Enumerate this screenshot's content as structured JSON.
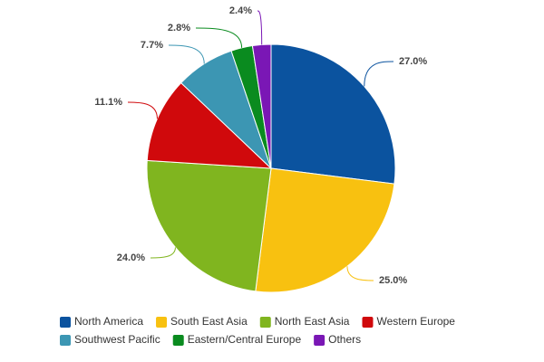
{
  "chart_data": {
    "type": "pie",
    "categories": [
      "North America",
      "South East Asia",
      "North East Asia",
      "Western Europe",
      "Southwest Pacific",
      "Eastern/Central Europe",
      "Others"
    ],
    "values": [
      27.0,
      25.0,
      24.0,
      11.1,
      7.7,
      2.8,
      2.4
    ],
    "value_labels": [
      "27.0%",
      "25.0%",
      "24.0%",
      "11.1%",
      "7.7%",
      "2.8%",
      "2.4%"
    ],
    "colors": [
      "#0b539f",
      "#f8c110",
      "#80b51f",
      "#d0090c",
      "#3c96b3",
      "#0a8b1f",
      "#7a17b5"
    ],
    "legend": "bottom"
  }
}
